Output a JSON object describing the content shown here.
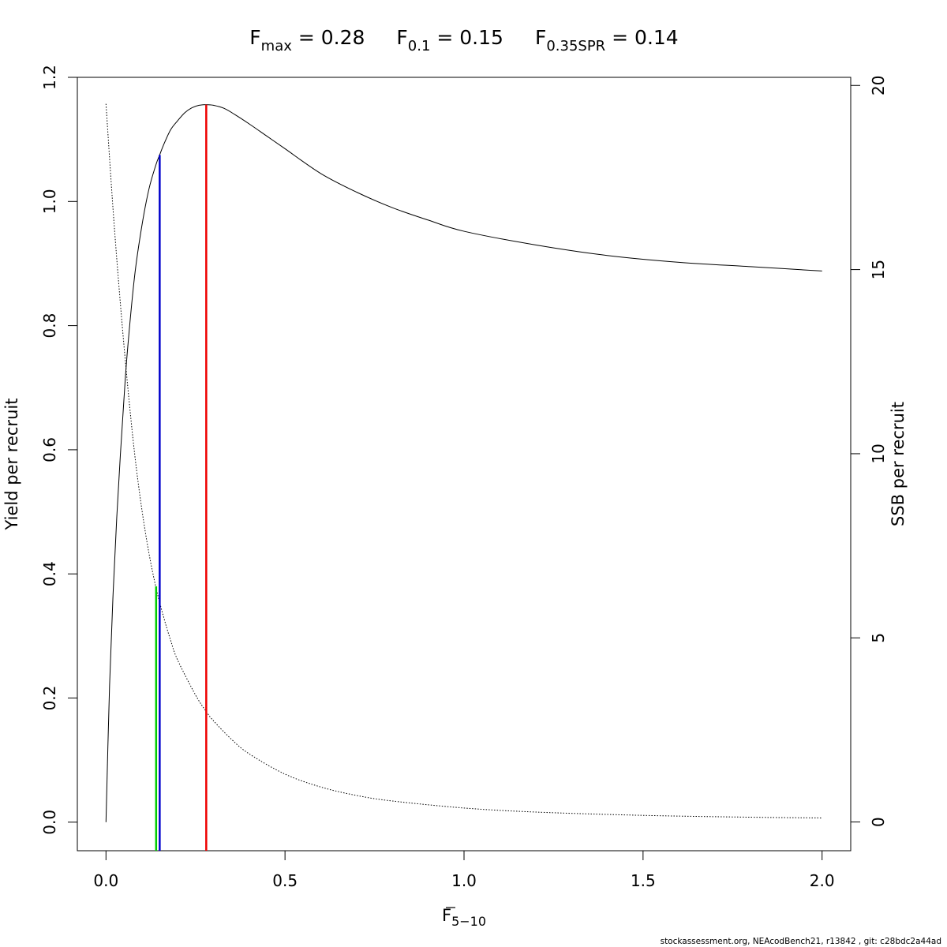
{
  "title": {
    "fmax": {
      "main": "F",
      "sub": "max",
      "rest": " = 0.28"
    },
    "f01": {
      "main": "F",
      "sub": "0.1",
      "rest": " = 0.15"
    },
    "fspr": {
      "main": "F",
      "sub": "0.35SPR",
      "rest": " = 0.14"
    }
  },
  "footer": "stockassessment.org, NEAcodBench21, r13842 , git: c28bdc2a44ad",
  "chart_data": {
    "type": "line",
    "xlabel": {
      "main": "F",
      "sub": "5−10"
    },
    "ylabel_left": "Yield per recruit",
    "ylabel_right": "SSB per recruit",
    "xlim": [
      -0.08,
      2.08
    ],
    "ylim_left": [
      -0.046,
      1.2
    ],
    "ylim_right": [
      -0.78,
      20.22
    ],
    "x_ticks": [
      "0.0",
      "0.5",
      "1.0",
      "1.5",
      "2.0"
    ],
    "y_left_ticks": [
      "0.0",
      "0.2",
      "0.4",
      "0.6",
      "0.8",
      "1.0",
      "1.2"
    ],
    "y_right_ticks": [
      "0",
      "5",
      "10",
      "15",
      "20"
    ],
    "grid": false,
    "series": [
      {
        "axis": "left",
        "style": "solid",
        "color": "#000000",
        "x": [
          0,
          0.01,
          0.02,
          0.03,
          0.04,
          0.05,
          0.06,
          0.08,
          0.1,
          0.12,
          0.14,
          0.15,
          0.16,
          0.18,
          0.2,
          0.22,
          0.24,
          0.26,
          0.28,
          0.3,
          0.33,
          0.36,
          0.4,
          0.45,
          0.5,
          0.6,
          0.7,
          0.8,
          0.9,
          1.0,
          1.2,
          1.4,
          1.6,
          1.8,
          2.0
        ],
        "y": [
          0,
          0.22,
          0.37,
          0.49,
          0.59,
          0.68,
          0.76,
          0.88,
          0.96,
          1.02,
          1.06,
          1.075,
          1.09,
          1.115,
          1.13,
          1.143,
          1.151,
          1.155,
          1.156,
          1.155,
          1.15,
          1.14,
          1.125,
          1.105,
          1.085,
          1.045,
          1.015,
          0.99,
          0.97,
          0.952,
          0.93,
          0.913,
          0.902,
          0.895,
          0.888
        ]
      },
      {
        "axis": "right",
        "style": "dotted",
        "color": "#000000",
        "x": [
          0,
          0.02,
          0.04,
          0.06,
          0.08,
          0.1,
          0.12,
          0.14,
          0.16,
          0.18,
          0.2,
          0.25,
          0.28,
          0.3,
          0.35,
          0.4,
          0.5,
          0.6,
          0.7,
          0.8,
          1.0,
          1.2,
          1.5,
          1.8,
          2.0
        ],
        "y": [
          19.5,
          16.6,
          14.1,
          11.9,
          10.0,
          8.5,
          7.3,
          6.35,
          5.6,
          4.95,
          4.4,
          3.45,
          3.0,
          2.75,
          2.25,
          1.85,
          1.3,
          0.95,
          0.72,
          0.57,
          0.38,
          0.27,
          0.18,
          0.13,
          0.11
        ]
      }
    ],
    "reference_lines": [
      {
        "name": "F0.35SPR",
        "x": 0.14,
        "y_top": 0.38,
        "color": "#00cc00"
      },
      {
        "name": "F0.1",
        "x": 0.15,
        "y_top": 1.075,
        "color": "#0000cc"
      },
      {
        "name": "Fmax",
        "x": 0.28,
        "y_top": 1.156,
        "color": "#ee0000"
      }
    ]
  }
}
